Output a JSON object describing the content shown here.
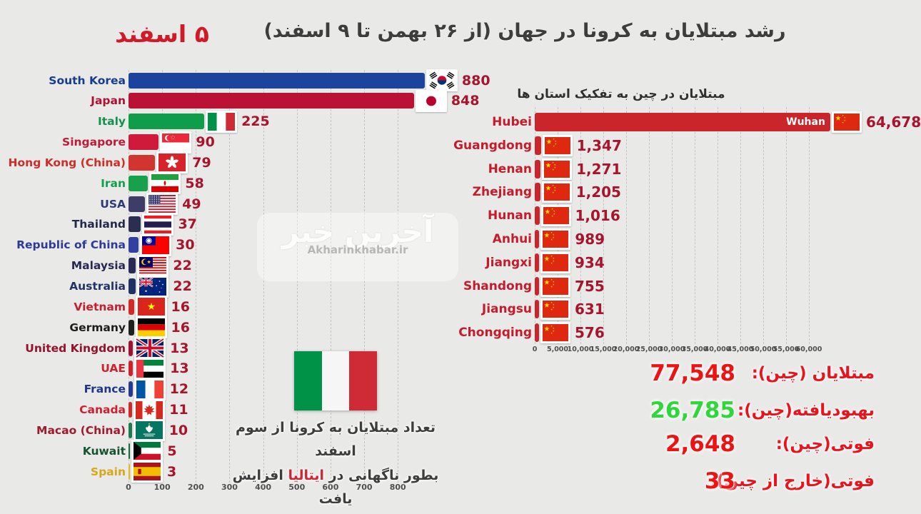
{
  "header": {
    "title": "رشد مبتلایان به کرونا در جهان (از ۲۶ بهمن تا ۹ اسفند)",
    "date_badge": "۵ اسفند",
    "title_color": "#3d3d3d",
    "date_color": "#d01a28"
  },
  "watermark": {
    "logo_text": "آخرین خبر",
    "site_text": "Akharinkhabar.ir"
  },
  "annotation": {
    "line1": "تعداد مبتلایان به کرونا از سوم اسفند",
    "line2_pre": "بطور ناگهانی در",
    "line2_highlight": "ایتالیا",
    "line2_post": "افزایش یافت",
    "highlight_color": "#d42433",
    "flag_icon": "italy-flag"
  },
  "chart_data": [
    {
      "type": "bar",
      "orientation": "horizontal",
      "title": "",
      "xlabel": "",
      "ylabel": "",
      "xlim": [
        0,
        880
      ],
      "x_ticks": [
        "0",
        "100",
        "200",
        "300",
        "400",
        "500",
        "600",
        "700",
        "800"
      ],
      "grid": "vertical-dashed",
      "value_color": "#a8142c",
      "categories": [
        "South Korea",
        "Japan",
        "Italy",
        "Singapore",
        "Hong Kong (China)",
        "Iran",
        "USA",
        "Thailand",
        "Republic of China",
        "Malaysia",
        "Australia",
        "Vietnam",
        "Germany",
        "United Kingdom",
        "UAE",
        "France",
        "Canada",
        "Macao (China)",
        "Kuwait",
        "Spain"
      ],
      "values": [
        880,
        848,
        225,
        90,
        79,
        58,
        49,
        37,
        30,
        22,
        22,
        16,
        16,
        13,
        13,
        12,
        11,
        10,
        5,
        3
      ],
      "bars": [
        {
          "name": "South Korea",
          "value": 880,
          "display": "880",
          "flag": "south-korea-flag",
          "bar_color": "#1c449c",
          "label_color": "#173c8f"
        },
        {
          "name": "Japan",
          "value": 848,
          "display": "848",
          "flag": "japan-flag",
          "bar_color": "#b91235",
          "label_color": "#ad1133"
        },
        {
          "name": "Italy",
          "value": 225,
          "display": "225",
          "flag": "italy-flag",
          "bar_color": "#0f9d49",
          "label_color": "#12914a"
        },
        {
          "name": "Singapore",
          "value": 90,
          "display": "90",
          "flag": "singapore-flag",
          "bar_color": "#cf1a3c",
          "label_color": "#c01a38"
        },
        {
          "name": "Hong Kong (China)",
          "value": 79,
          "display": "79",
          "flag": "hong-kong-flag",
          "bar_color": "#d23430",
          "label_color": "#d02c28"
        },
        {
          "name": "Iran",
          "value": 58,
          "display": "58",
          "flag": "iran-flag",
          "bar_color": "#18a14d",
          "label_color": "#13a04e"
        },
        {
          "name": "USA",
          "value": 49,
          "display": "49",
          "flag": "usa-flag",
          "bar_color": "#3d3d66",
          "label_color": "#2d3a77"
        },
        {
          "name": "Thailand",
          "value": 37,
          "display": "37",
          "flag": "thailand-flag",
          "bar_color": "#2b2e50",
          "label_color": "#23294a"
        },
        {
          "name": "Republic of China",
          "value": 30,
          "display": "30",
          "flag": "taiwan-flag",
          "bar_color": "#3340a0",
          "label_color": "#2c3a9a"
        },
        {
          "name": "Malaysia",
          "value": 22,
          "display": "22",
          "flag": "malaysia-flag",
          "bar_color": "#292a55",
          "label_color": "#262a52"
        },
        {
          "name": "Australia",
          "value": 22,
          "display": "22",
          "flag": "australia-flag",
          "bar_color": "#1f3264",
          "label_color": "#223366"
        },
        {
          "name": "Vietnam",
          "value": 16,
          "display": "16",
          "flag": "vietnam-flag",
          "bar_color": "#d32a28",
          "label_color": "#c32030"
        },
        {
          "name": "Germany",
          "value": 16,
          "display": "16",
          "flag": "germany-flag",
          "bar_color": "#1f1f1f",
          "label_color": "#1d1d1d"
        },
        {
          "name": "United Kingdom",
          "value": 13,
          "display": "13",
          "flag": "uk-flag",
          "bar_color": "#9e1430",
          "label_color": "#951228"
        },
        {
          "name": "UAE",
          "value": 13,
          "display": "13",
          "flag": "uae-flag",
          "bar_color": "#d02030",
          "label_color": "#d02030"
        },
        {
          "name": "France",
          "value": 12,
          "display": "12",
          "flag": "france-flag",
          "bar_color": "#25398f",
          "label_color": "#20368c"
        },
        {
          "name": "Canada",
          "value": 11,
          "display": "11",
          "flag": "canada-flag",
          "bar_color": "#d32a28",
          "label_color": "#cf2030"
        },
        {
          "name": "Macao (China)",
          "value": 10,
          "display": "10",
          "flag": "macao-flag",
          "bar_color": "#1e7a50",
          "label_color": "#a01a2e"
        },
        {
          "name": "Kuwait",
          "value": 5,
          "display": "5",
          "flag": "kuwait-flag",
          "bar_color": "#136a3a",
          "label_color": "#14532d"
        },
        {
          "name": "Spain",
          "value": 3,
          "display": "3",
          "flag": "spain-flag",
          "bar_color": "#e3b81f",
          "label_color": "#d8a818"
        }
      ]
    },
    {
      "type": "bar",
      "orientation": "horizontal",
      "title": "مبتلایان در چین به تفکیک استان ها",
      "xlabel": "",
      "ylabel": "",
      "xlim": [
        0,
        65000
      ],
      "x_ticks": [
        "0",
        "5,000",
        "10,000",
        "15,000",
        "20,000",
        "25,000",
        "30,000",
        "35,000",
        "40,000",
        "45,000",
        "50,000",
        "55,000",
        "60,000"
      ],
      "grid": "vertical-dashed",
      "bar_color": "#c9252b",
      "label_color": "#c41c2c",
      "value_color": "#a8142c",
      "categories": [
        "Hubei",
        "Guangdong",
        "Henan",
        "Zhejiang",
        "Hunan",
        "Anhui",
        "Jiangxi",
        "Shandong",
        "Jiangsu",
        "Chongqing"
      ],
      "values": [
        64678,
        1347,
        1271,
        1205,
        1016,
        989,
        934,
        755,
        631,
        576
      ],
      "bars": [
        {
          "name": "Hubei",
          "value": 64678,
          "display": "64,678",
          "flag": "china-flag",
          "badge": "Wuhan"
        },
        {
          "name": "Guangdong",
          "value": 1347,
          "display": "1,347",
          "flag": "china-flag"
        },
        {
          "name": "Henan",
          "value": 1271,
          "display": "1,271",
          "flag": "china-flag"
        },
        {
          "name": "Zhejiang",
          "value": 1205,
          "display": "1,205",
          "flag": "china-flag"
        },
        {
          "name": "Hunan",
          "value": 1016,
          "display": "1,016",
          "flag": "china-flag"
        },
        {
          "name": "Anhui",
          "value": 989,
          "display": "989",
          "flag": "china-flag"
        },
        {
          "name": "Jiangxi",
          "value": 934,
          "display": "934",
          "flag": "china-flag"
        },
        {
          "name": "Shandong",
          "value": 755,
          "display": "755",
          "flag": "china-flag"
        },
        {
          "name": "Jiangsu",
          "value": 631,
          "display": "631",
          "flag": "china-flag"
        },
        {
          "name": "Chongqing",
          "value": 576,
          "display": "576",
          "flag": "china-flag"
        }
      ]
    }
  ],
  "stats": {
    "label_color": "#e8131d",
    "items": [
      {
        "label": "مبتلایان (چین):",
        "value": "77,548",
        "value_color": "#ed1313"
      },
      {
        "label": "بهبودیافته(چین):",
        "value": "26,785",
        "value_color": "#2fd63c"
      },
      {
        "label": "فوتی(چین):",
        "value": "2,648",
        "value_color": "#ed1313"
      },
      {
        "label": "فوتی(خارج از چین):",
        "value": "33",
        "value_color": "#ed1313"
      }
    ]
  }
}
